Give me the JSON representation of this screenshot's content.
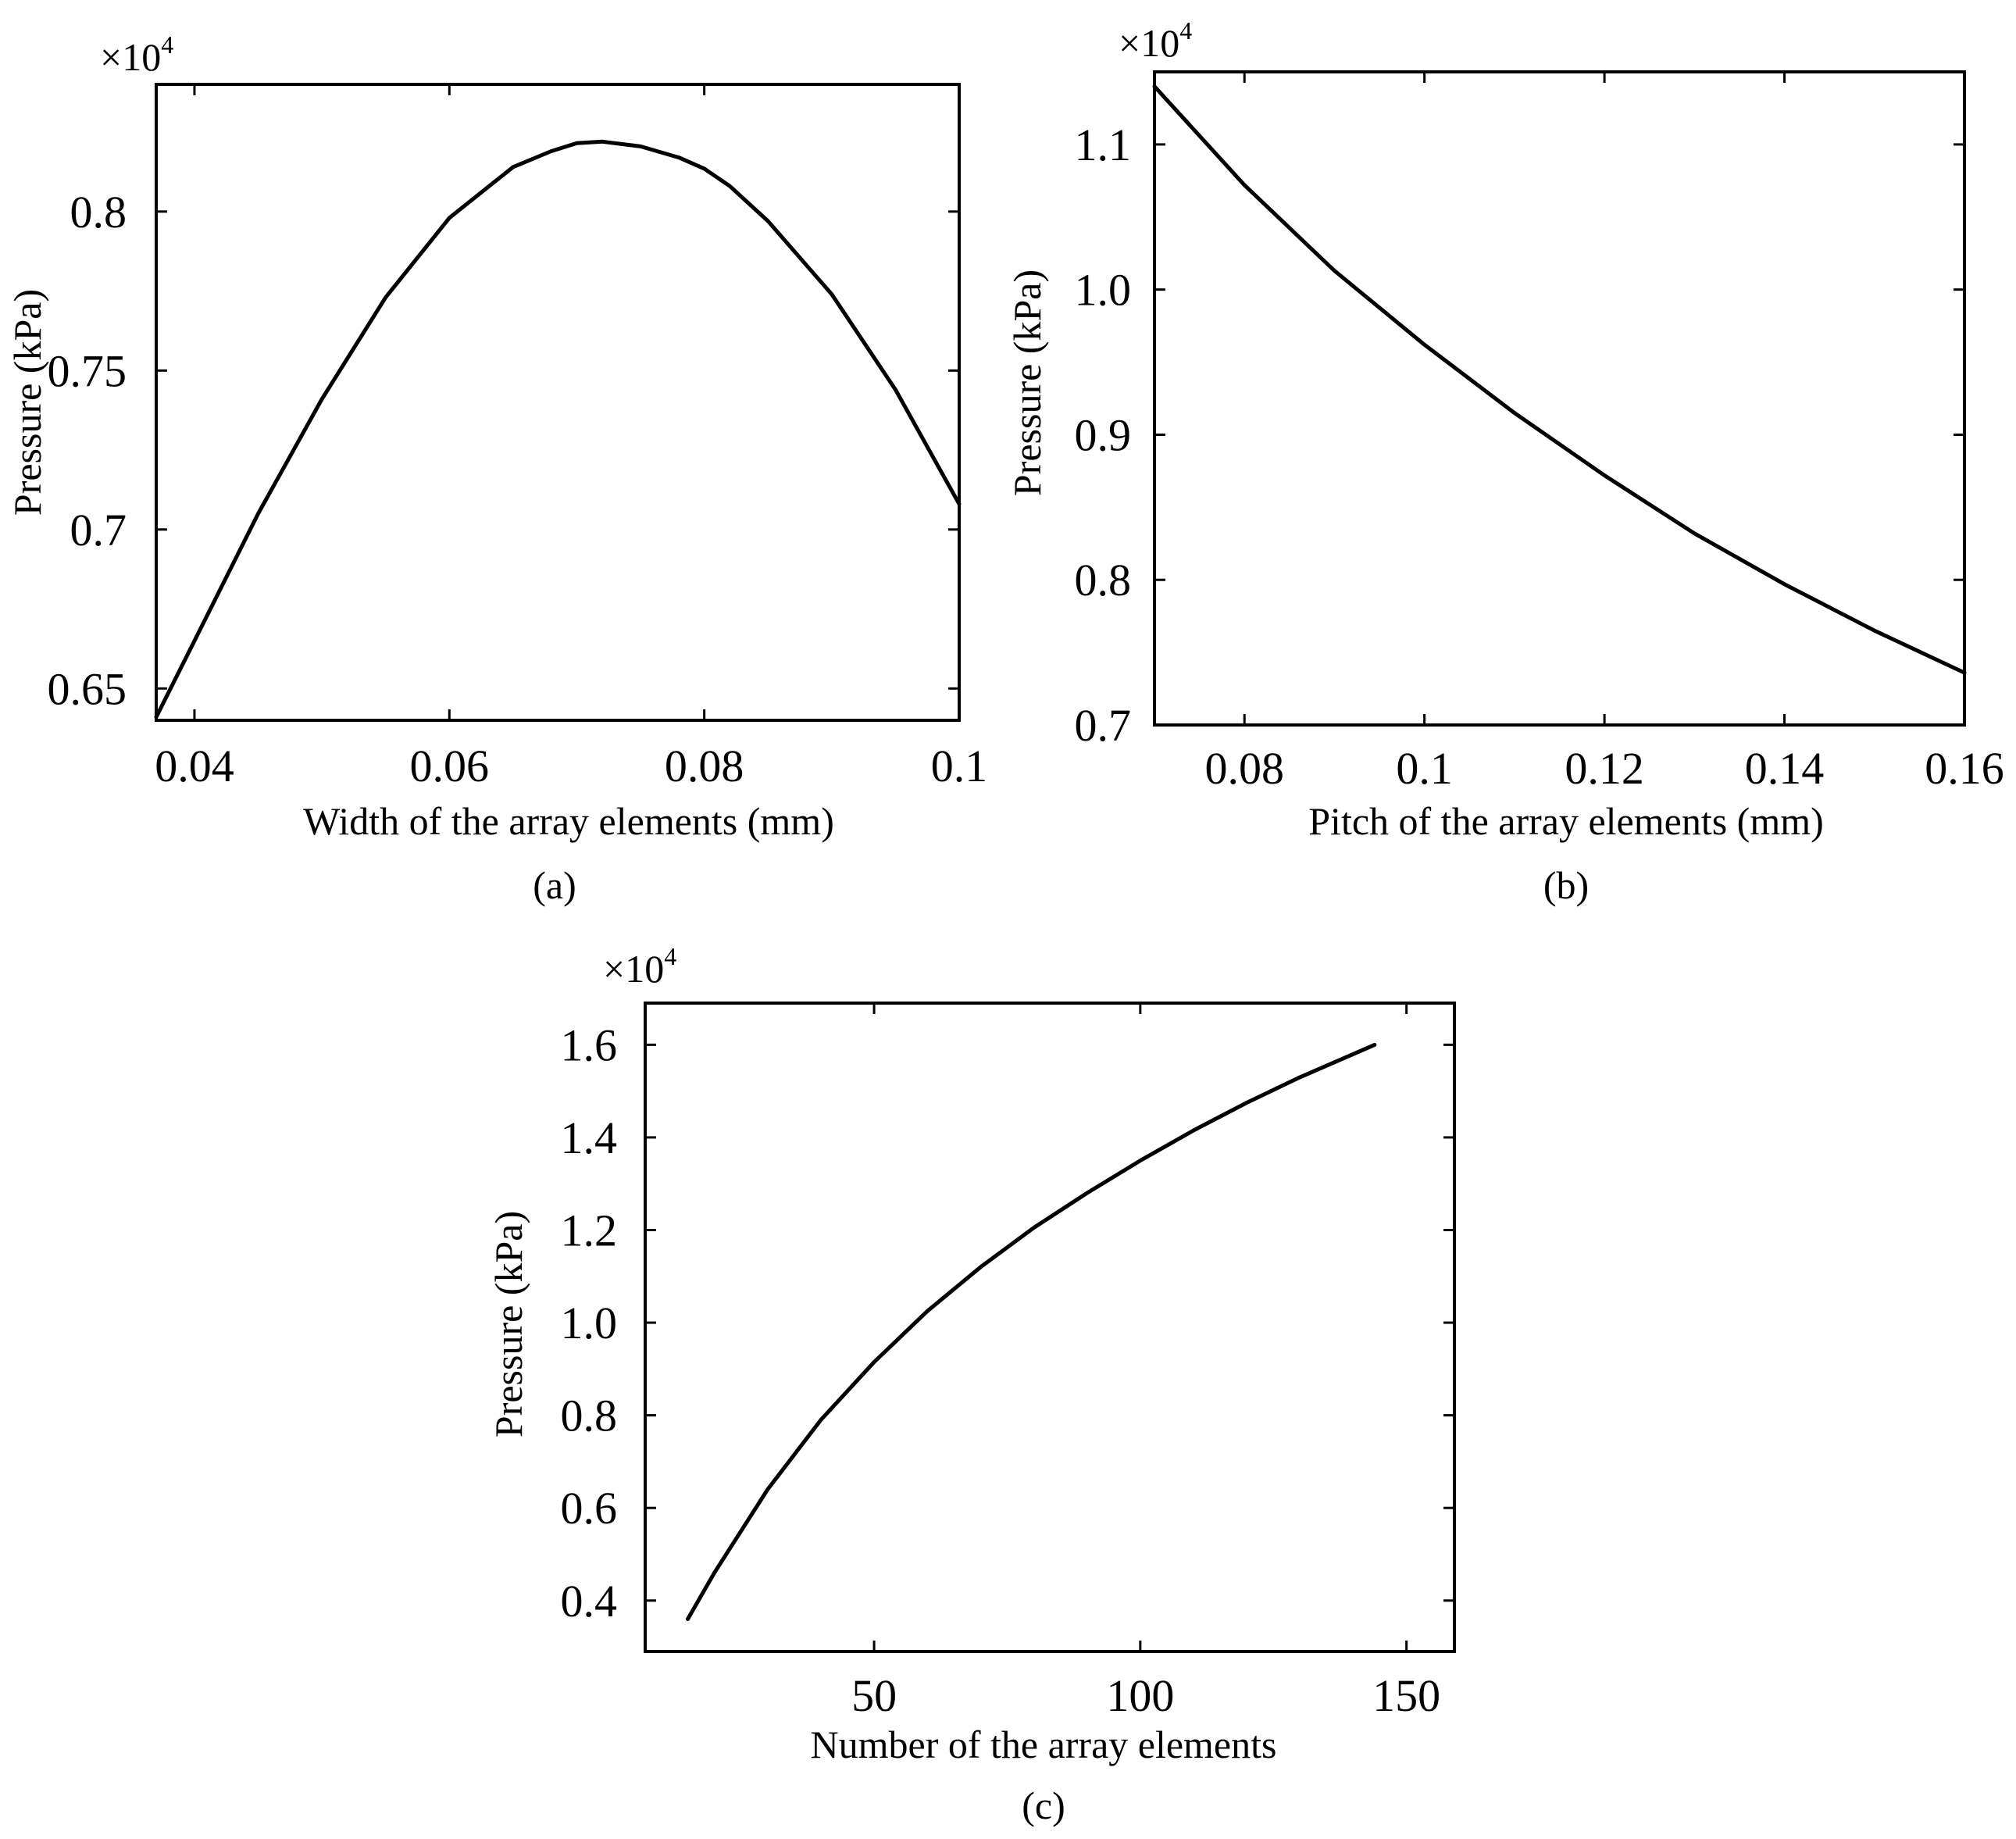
{
  "chart_data": [
    {
      "id": "a",
      "type": "line",
      "caption": "(a)",
      "xlabel": "Width of the array elements (mm)",
      "ylabel": "Pressure (kPa)",
      "scale_label": "×10",
      "scale_exponent": "4",
      "xlim": [
        0.037,
        0.1
      ],
      "ylim": [
        0.64,
        0.84
      ],
      "xticks": [
        0.04,
        0.06,
        0.08,
        0.1
      ],
      "xtick_labels": [
        "0.04",
        "0.06",
        "0.08",
        "0.1"
      ],
      "yticks": [
        0.65,
        0.7,
        0.75,
        0.8
      ],
      "ytick_labels": [
        "0.65",
        "0.7",
        "0.75",
        "0.8"
      ],
      "series": [
        {
          "name": "Pressure",
          "x": [
            0.037,
            0.04,
            0.045,
            0.05,
            0.055,
            0.06,
            0.065,
            0.068,
            0.07,
            0.072,
            0.075,
            0.078,
            0.08,
            0.082,
            0.085,
            0.09,
            0.095,
            0.1
          ],
          "y": [
            0.641,
            0.665,
            0.705,
            0.741,
            0.773,
            0.798,
            0.814,
            0.819,
            0.8215,
            0.822,
            0.8205,
            0.817,
            0.8135,
            0.808,
            0.797,
            0.774,
            0.744,
            0.708
          ]
        }
      ]
    },
    {
      "id": "b",
      "type": "line",
      "caption": "(b)",
      "xlabel": "Pitch of the array elements (mm)",
      "ylabel": "Pressure (kPa)",
      "scale_label": "×10",
      "scale_exponent": "4",
      "xlim": [
        0.07,
        0.16
      ],
      "ylim": [
        0.7,
        1.15
      ],
      "xticks": [
        0.08,
        0.1,
        0.12,
        0.14,
        0.16
      ],
      "xtick_labels": [
        "0.08",
        "0.1",
        "0.12",
        "0.14",
        "0.16"
      ],
      "yticks": [
        0.7,
        0.8,
        0.9,
        1.0,
        1.1
      ],
      "ytick_labels": [
        "0.7",
        "0.8",
        "0.9",
        "1.0",
        "1.1"
      ],
      "series": [
        {
          "name": "Pressure",
          "x": [
            0.07,
            0.08,
            0.09,
            0.1,
            0.11,
            0.12,
            0.13,
            0.14,
            0.15,
            0.16
          ],
          "y": [
            1.14,
            1.072,
            1.013,
            0.962,
            0.915,
            0.872,
            0.832,
            0.797,
            0.765,
            0.736
          ]
        }
      ]
    },
    {
      "id": "c",
      "type": "line",
      "caption": "(c)",
      "xlabel": "Number of the array elements",
      "ylabel": "Pressure (kPa)",
      "scale_label": "×10",
      "scale_exponent": "4",
      "xlim": [
        7,
        159
      ],
      "ylim": [
        0.29,
        1.69
      ],
      "xticks": [
        50,
        100,
        150
      ],
      "xtick_labels": [
        "50",
        "100",
        "150"
      ],
      "yticks": [
        0.4,
        0.6,
        0.8,
        1.0,
        1.2,
        1.4,
        1.6
      ],
      "ytick_labels": [
        "0.4",
        "0.6",
        "0.8",
        "1.0",
        "1.2",
        "1.4",
        "1.6"
      ],
      "series": [
        {
          "name": "Pressure",
          "x": [
            15,
            20,
            30,
            40,
            50,
            60,
            70,
            80,
            90,
            100,
            110,
            120,
            130,
            144
          ],
          "y": [
            0.36,
            0.46,
            0.64,
            0.79,
            0.915,
            1.025,
            1.12,
            1.205,
            1.28,
            1.35,
            1.415,
            1.475,
            1.53,
            1.6
          ]
        }
      ]
    }
  ]
}
